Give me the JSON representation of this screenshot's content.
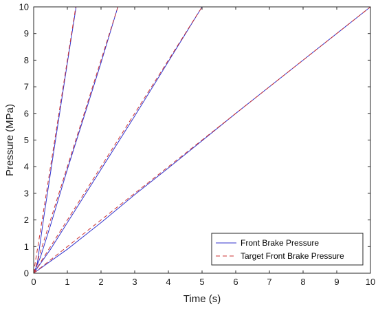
{
  "chart_data": {
    "type": "line",
    "title": "",
    "xlabel": "Time (s)",
    "ylabel": "Pressure (MPa)",
    "xlim": [
      0,
      10
    ],
    "ylim": [
      0,
      10
    ],
    "xticks": [
      "0",
      "1",
      "2",
      "3",
      "4",
      "5",
      "6",
      "7",
      "8",
      "9",
      "10"
    ],
    "yticks": [
      "0",
      "1",
      "2",
      "3",
      "4",
      "5",
      "6",
      "7",
      "8",
      "9",
      "10"
    ],
    "grid": false,
    "legend_position": "bottom-right",
    "legend": [
      {
        "label": "Front Brake Pressure",
        "color": "#3333cc",
        "style": "solid"
      },
      {
        "label": "Target Front Brake Pressure",
        "color": "#cc3333",
        "style": "dashed"
      }
    ],
    "series": [
      {
        "name": "Front Brake Pressure",
        "ramp": "8 MPa/s",
        "color": "#3333cc",
        "style": "solid",
        "x": [
          0,
          0.1,
          0.3,
          0.6,
          1.0,
          1.26
        ],
        "y": [
          0,
          0.3,
          2.1,
          4.6,
          7.9,
          10.0
        ]
      },
      {
        "name": "Target Front Brake Pressure",
        "ramp": "8 MPa/s",
        "color": "#cc3333",
        "style": "dashed",
        "x": [
          0,
          0.02,
          0.15,
          0.5,
          1.0,
          1.25
        ],
        "y": [
          0,
          0.2,
          1.2,
          4.0,
          8.0,
          10.0
        ]
      },
      {
        "name": "Front Brake Pressure",
        "ramp": "4 MPa/s",
        "color": "#3333cc",
        "style": "solid",
        "x": [
          0,
          0.2,
          0.5,
          1.0,
          1.5,
          2.0,
          2.5
        ],
        "y": [
          0,
          0.6,
          1.8,
          3.9,
          5.9,
          7.9,
          10.0
        ]
      },
      {
        "name": "Target Front Brake Pressure",
        "ramp": "4 MPa/s",
        "color": "#cc3333",
        "style": "dashed",
        "x": [
          0,
          0.05,
          0.25,
          0.5,
          1.0,
          1.5,
          2.0,
          2.5
        ],
        "y": [
          0,
          0.2,
          1.0,
          2.0,
          4.0,
          6.0,
          8.0,
          10.0
        ]
      },
      {
        "name": "Front Brake Pressure",
        "ramp": "2 MPa/s",
        "color": "#3333cc",
        "style": "solid",
        "x": [
          0,
          0.5,
          1.0,
          2.0,
          3.0,
          4.0,
          5.0
        ],
        "y": [
          0,
          0.9,
          1.9,
          3.9,
          5.9,
          7.95,
          10.0
        ]
      },
      {
        "name": "Target Front Brake Pressure",
        "ramp": "2 MPa/s",
        "color": "#cc3333",
        "style": "dashed",
        "x": [
          0,
          0.1,
          0.5,
          1.0,
          2.0,
          3.0,
          4.0,
          5.0
        ],
        "y": [
          0,
          0.2,
          1.0,
          2.0,
          4.0,
          6.0,
          8.0,
          10.0
        ]
      },
      {
        "name": "Front Brake Pressure",
        "ramp": "1 MPa/s",
        "color": "#3333cc",
        "style": "solid",
        "x": [
          0,
          1.0,
          2.0,
          3.0,
          4.0,
          6.0,
          8.0,
          10.0
        ],
        "y": [
          0,
          0.9,
          1.9,
          2.95,
          3.95,
          6.0,
          8.0,
          10.0
        ]
      },
      {
        "name": "Target Front Brake Pressure",
        "ramp": "1 MPa/s",
        "color": "#cc3333",
        "style": "dashed",
        "x": [
          0,
          0.2,
          1.0,
          2.0,
          4.0,
          6.0,
          8.0,
          10.0
        ],
        "y": [
          0,
          0.2,
          1.0,
          2.0,
          4.0,
          6.0,
          8.0,
          10.0
        ]
      }
    ]
  }
}
